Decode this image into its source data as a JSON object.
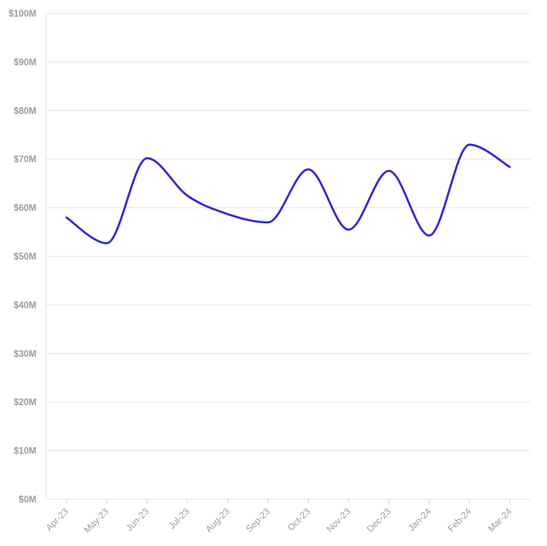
{
  "chart_data": {
    "type": "line",
    "title": "",
    "xlabel": "",
    "ylabel": "",
    "categories": [
      "Apr-23",
      "May-23",
      "Jun-23",
      "Jul-23",
      "Aug-23",
      "Sep-23",
      "Oct-23",
      "Nov-23",
      "Dec-23",
      "Jan-24",
      "Feb-24",
      "Mar-24"
    ],
    "series": [
      {
        "values": [
          58.0,
          52.7,
          70.2,
          62.5,
          58.7,
          57.0,
          67.9,
          55.5,
          67.6,
          54.3,
          73.0,
          68.4
        ]
      }
    ],
    "ylim": [
      0,
      100
    ],
    "y_ticks": [
      0,
      10,
      20,
      30,
      40,
      50,
      60,
      70,
      80,
      90,
      100
    ],
    "y_tick_labels": [
      "$0M",
      "$10M",
      "$20M",
      "$30M",
      "$40M",
      "$50M",
      "$60M",
      "$70M",
      "$80M",
      "$90M",
      "$100M"
    ],
    "grid": true,
    "legend": "none",
    "curve": "smooth",
    "colors": {
      "line": "#2b22cc",
      "grid": "#e6e6e6",
      "text": "#9a9a9a"
    }
  }
}
